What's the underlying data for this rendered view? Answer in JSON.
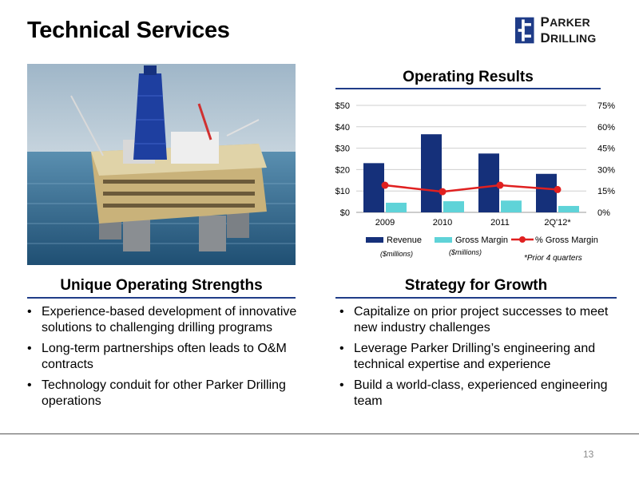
{
  "slide": {
    "title": "Technical Services",
    "page_number": "13"
  },
  "logo": {
    "text_big": "P",
    "text_rest": "ARKER ",
    "text_big2": "D",
    "text_rest2": "RILLING",
    "color": "#1f3c88"
  },
  "photo": {
    "subject": "offshore-platform-image"
  },
  "chart_data": {
    "type": "bar",
    "title": "Operating Results",
    "categories": [
      "2009",
      "2010",
      "2011",
      "2Q'12*"
    ],
    "series": [
      {
        "name": "Revenue",
        "sub": "($millions)",
        "type": "bar",
        "axis": "left",
        "color": "#15307a",
        "values": [
          23,
          36.5,
          27.5,
          18
        ]
      },
      {
        "name": "Gross Margin",
        "sub": "($millions)",
        "type": "bar",
        "axis": "left",
        "color": "#5fd3d8",
        "values": [
          4.5,
          5.2,
          5.5,
          3
        ]
      },
      {
        "name": "% Gross Margin",
        "type": "line",
        "axis": "right",
        "color": "#e02020",
        "values": [
          19,
          14.5,
          19,
          16
        ]
      }
    ],
    "y_left": {
      "min": 0,
      "max": 50,
      "ticks": [
        "$0",
        "$10",
        "$20",
        "$30",
        "$40",
        "$50"
      ]
    },
    "y_right": {
      "min": 0,
      "max": 75,
      "ticks": [
        "0%",
        "15%",
        "30%",
        "45%",
        "60%",
        "75%"
      ]
    },
    "grid": true,
    "legend_position": "bottom",
    "footnote": "*Prior 4 quarters"
  },
  "left_section": {
    "heading": "Unique Operating Strengths",
    "bullets": [
      "Experience-based development of innovative solutions to challenging drilling programs",
      "Long-term partnerships often leads to O&M contracts",
      "Technology conduit for other Parker Drilling operations"
    ]
  },
  "right_section": {
    "heading": "Strategy for Growth",
    "bullets": [
      "Capitalize on prior project successes to meet new industry challenges",
      "Leverage Parker Drilling’s engineering and technical expertise and experience",
      "Build a world-class, experienced engineering team"
    ]
  }
}
